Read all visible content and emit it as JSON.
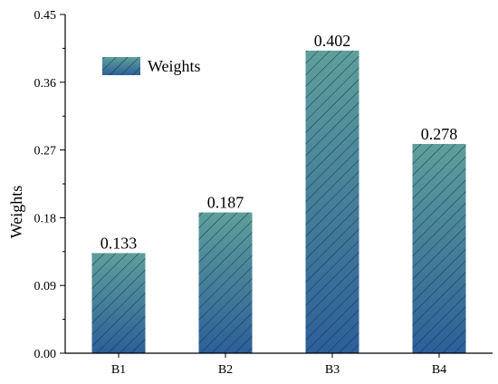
{
  "chart_data": {
    "type": "bar",
    "categories": [
      "B1",
      "B2",
      "B3",
      "B4"
    ],
    "series": [
      {
        "name": "Weights",
        "values": [
          0.133,
          0.187,
          0.402,
          0.278
        ]
      }
    ],
    "data_labels": [
      "0.133",
      "0.187",
      "0.402",
      "0.278"
    ],
    "ylabel": "Weights",
    "ylim": [
      0,
      0.45
    ],
    "yticks": [
      "0.00",
      "0.09",
      "0.18",
      "0.27",
      "0.36",
      "0.45"
    ],
    "grid": false,
    "legend": {
      "position": "top-left",
      "label": "Weights"
    },
    "colors": {
      "bar_top": "#5e9f9b",
      "bar_bottom": "#2c5f9a",
      "hatch": "#1e3040"
    }
  }
}
